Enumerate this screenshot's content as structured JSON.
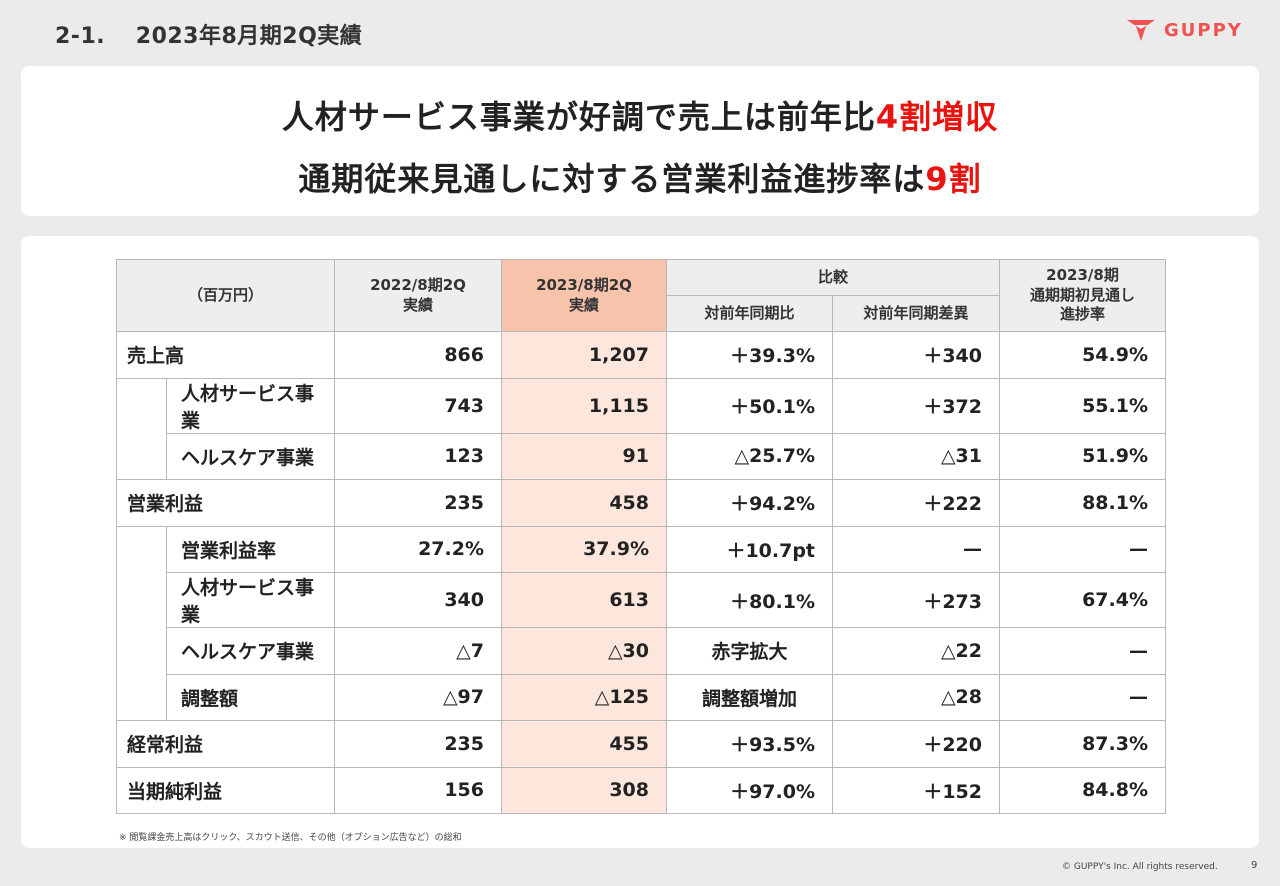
{
  "page": {
    "title": "2-1.　 2023年8月期2Q実績",
    "logo_text": "GUPPY",
    "colors": {
      "accent": "#e8140f",
      "logo": "#f0524f",
      "highlight_header": "#f8c3ab",
      "highlight_cell": "#fde6dc"
    }
  },
  "headline": {
    "line1_main": "人材サービス事業が好調で売上は前年比",
    "line1_highlight": "4割増収",
    "line2_main": "通期従来見通しに対する営業利益進捗率は",
    "line2_highlight": "9割"
  },
  "table": {
    "headers": {
      "unit": "（百万円）",
      "prev_line1": "2022/8期2Q",
      "prev_line2": "実績",
      "curr_line1": "2023/8期2Q",
      "curr_line2": "実績",
      "compare": "比較",
      "yoy_ratio": "対前年同期比",
      "yoy_diff": "対前年同期差異",
      "progress_line1": "2023/8期",
      "progress_line2": "通期期初見通し",
      "progress_line3": "進捗率"
    },
    "rows": [
      {
        "label": "売上高",
        "prev": "866",
        "curr": "1,207",
        "ratio": "＋39.3%",
        "diff": "＋340",
        "progress": "54.9%"
      },
      {
        "label": "人材サービス事業",
        "prev": "743",
        "curr": "1,115",
        "ratio": "＋50.1%",
        "diff": "＋372",
        "progress": "55.1%"
      },
      {
        "label": "ヘルスケア事業",
        "prev": "123",
        "curr": "91",
        "ratio": "△25.7%",
        "diff": "△31",
        "progress": "51.9%"
      },
      {
        "label": "営業利益",
        "prev": "235",
        "curr": "458",
        "ratio": "＋94.2%",
        "diff": "＋222",
        "progress": "88.1%"
      },
      {
        "label": "営業利益率",
        "prev": "27.2%",
        "curr": "37.9%",
        "ratio": "＋10.7pt",
        "diff": "—",
        "progress": "—"
      },
      {
        "label": "人材サービス事業",
        "prev": "340",
        "curr": "613",
        "ratio": "＋80.1%",
        "diff": "＋273",
        "progress": "67.4%"
      },
      {
        "label": "ヘルスケア事業",
        "prev": "△7",
        "curr": "△30",
        "ratio": "赤字拡大",
        "diff": "△22",
        "progress": "—"
      },
      {
        "label": "調整額",
        "prev": "△97",
        "curr": "△125",
        "ratio": "調整額増加",
        "diff": "△28",
        "progress": "—"
      },
      {
        "label": "経常利益",
        "prev": "235",
        "curr": "455",
        "ratio": "＋93.5%",
        "diff": "＋220",
        "progress": "87.3%"
      },
      {
        "label": "当期純利益",
        "prev": "156",
        "curr": "308",
        "ratio": "＋97.0%",
        "diff": "＋152",
        "progress": "84.8%"
      }
    ]
  },
  "footnote": "※ 閲覧課金売上高はクリック、スカウト送信、その他（オプション広告など）の総和",
  "copyright": "© GUPPY's Inc. All rights reserved.",
  "page_number": "9"
}
